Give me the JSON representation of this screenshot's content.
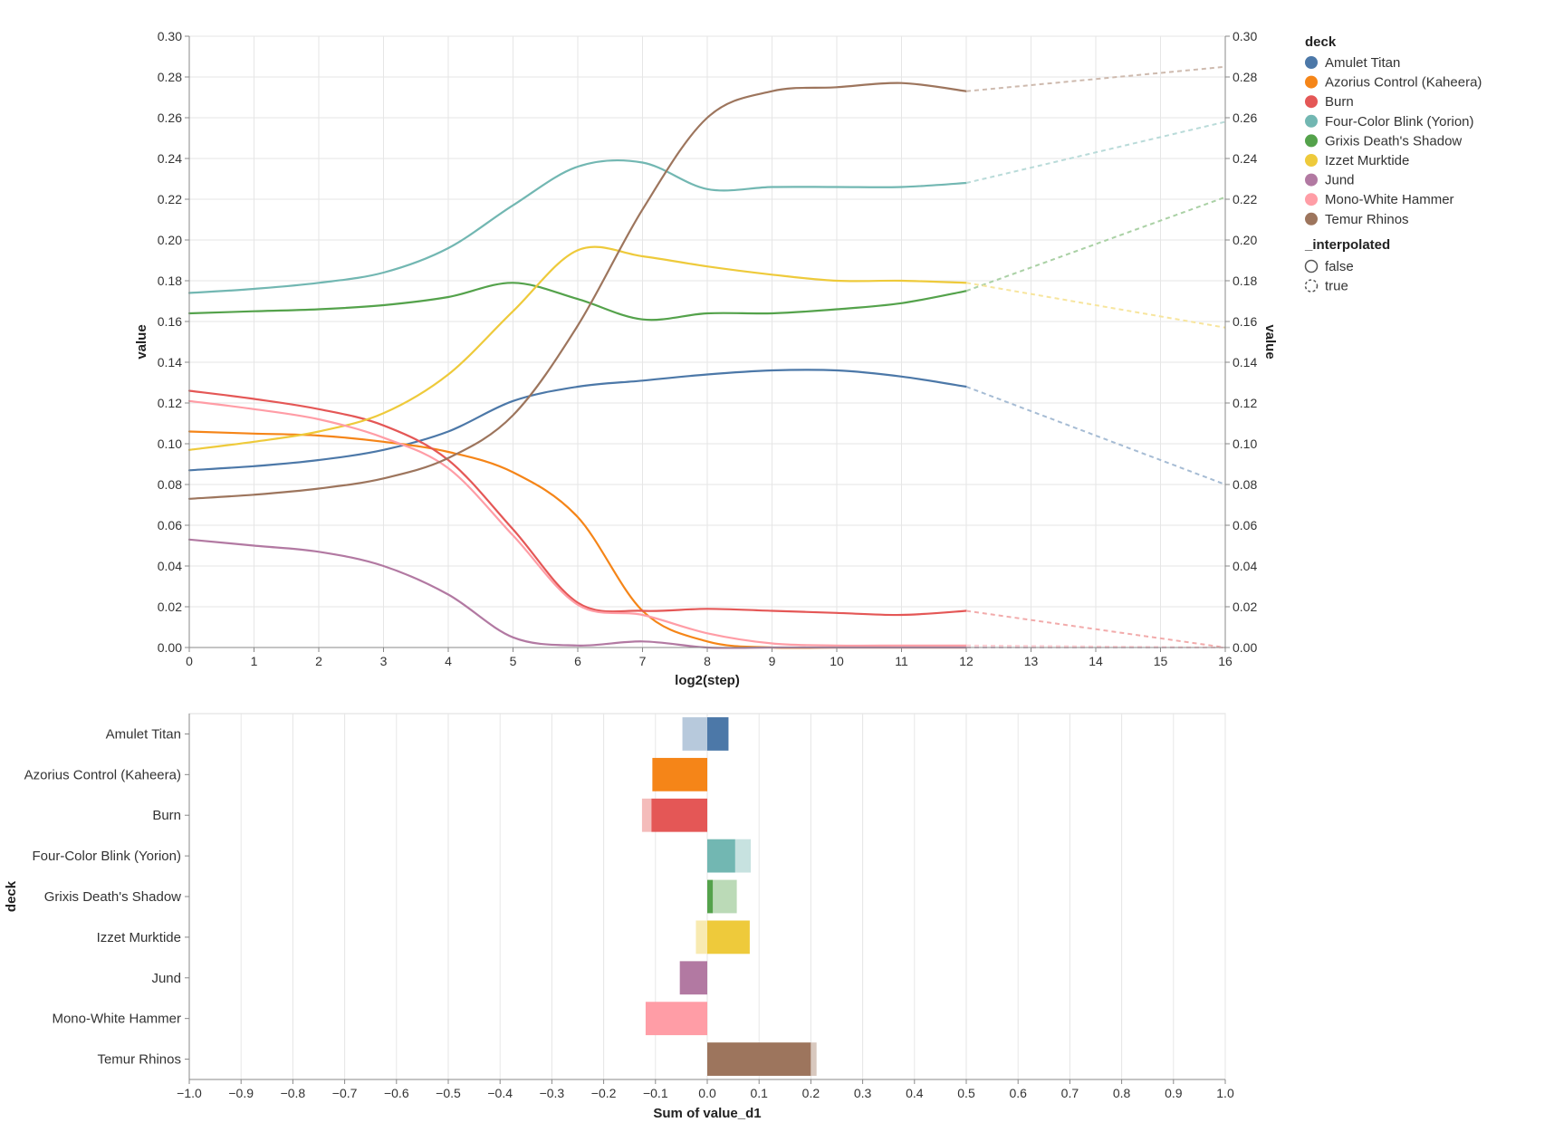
{
  "chart_data": [
    {
      "type": "line",
      "title": "",
      "xlabel": "log2(step)",
      "ylabel": "value",
      "ylabel_right": "value",
      "xlim": [
        0,
        16
      ],
      "ylim": [
        0,
        0.3
      ],
      "x_ticks": [
        0,
        1,
        2,
        3,
        4,
        5,
        6,
        7,
        8,
        9,
        10,
        11,
        12,
        13,
        14,
        15,
        16
      ],
      "y_ticks": [
        "0.00",
        "0.02",
        "0.04",
        "0.06",
        "0.08",
        "0.10",
        "0.12",
        "0.14",
        "0.16",
        "0.18",
        "0.20",
        "0.22",
        "0.24",
        "0.26",
        "0.28",
        "0.30"
      ],
      "grid": true,
      "series": [
        {
          "name": "Amulet Titan",
          "color": "#4c78a8",
          "x": [
            0,
            1,
            2,
            3,
            4,
            5,
            6,
            7,
            8,
            9,
            10,
            11,
            12
          ],
          "values": [
            0.087,
            0.089,
            0.092,
            0.097,
            0.106,
            0.121,
            0.128,
            0.131,
            0.134,
            0.136,
            0.136,
            0.133,
            0.128
          ],
          "projected": [
            0.08
          ]
        },
        {
          "name": "Azorius Control (Kaheera)",
          "color": "#f58518",
          "x": [
            0,
            1,
            2,
            3,
            4,
            5,
            6,
            7,
            8,
            9,
            10,
            11,
            12
          ],
          "values": [
            0.106,
            0.105,
            0.104,
            0.101,
            0.096,
            0.086,
            0.064,
            0.018,
            0.003,
            0.0,
            0.0,
            0.0,
            0.0
          ],
          "projected": [
            0.0
          ]
        },
        {
          "name": "Burn",
          "color": "#e45756",
          "x": [
            0,
            1,
            2,
            3,
            4,
            5,
            6,
            7,
            8,
            9,
            10,
            11,
            12
          ],
          "values": [
            0.126,
            0.122,
            0.117,
            0.109,
            0.092,
            0.058,
            0.022,
            0.018,
            0.019,
            0.018,
            0.017,
            0.016,
            0.018
          ],
          "projected": [
            0.0
          ]
        },
        {
          "name": "Four-Color Blink (Yorion)",
          "color": "#72b7b2",
          "x": [
            0,
            1,
            2,
            3,
            4,
            5,
            6,
            7,
            8,
            9,
            10,
            11,
            12
          ],
          "values": [
            0.174,
            0.176,
            0.179,
            0.184,
            0.196,
            0.217,
            0.236,
            0.238,
            0.225,
            0.226,
            0.226,
            0.226,
            0.228
          ],
          "projected": [
            0.258
          ]
        },
        {
          "name": "Grixis Death's Shadow",
          "color": "#54a24b",
          "x": [
            0,
            1,
            2,
            3,
            4,
            5,
            6,
            7,
            8,
            9,
            10,
            11,
            12
          ],
          "values": [
            0.164,
            0.165,
            0.166,
            0.168,
            0.172,
            0.179,
            0.171,
            0.161,
            0.164,
            0.164,
            0.166,
            0.169,
            0.175
          ],
          "projected": [
            0.221
          ]
        },
        {
          "name": "Izzet Murktide",
          "color": "#eeca3b",
          "x": [
            0,
            1,
            2,
            3,
            4,
            5,
            6,
            7,
            8,
            9,
            10,
            11,
            12
          ],
          "values": [
            0.097,
            0.101,
            0.106,
            0.115,
            0.134,
            0.165,
            0.195,
            0.192,
            0.187,
            0.183,
            0.18,
            0.18,
            0.179
          ],
          "projected": [
            0.157
          ]
        },
        {
          "name": "Jund",
          "color": "#b279a2",
          "x": [
            0,
            1,
            2,
            3,
            4,
            5,
            6,
            7,
            8,
            9,
            10,
            11,
            12
          ],
          "values": [
            0.053,
            0.05,
            0.047,
            0.04,
            0.026,
            0.005,
            0.001,
            0.003,
            0.0,
            0.0,
            0.0,
            0.0,
            0.0
          ],
          "projected": [
            0.0
          ]
        },
        {
          "name": "Mono-White Hammer",
          "color": "#ff9da6",
          "x": [
            0,
            1,
            2,
            3,
            4,
            5,
            6,
            7,
            8,
            9,
            10,
            11,
            12
          ],
          "values": [
            0.121,
            0.117,
            0.112,
            0.103,
            0.088,
            0.055,
            0.021,
            0.016,
            0.007,
            0.002,
            0.001,
            0.001,
            0.001
          ],
          "projected": [
            0.0
          ]
        },
        {
          "name": "Temur Rhinos",
          "color": "#9d755d",
          "x": [
            0,
            1,
            2,
            3,
            4,
            5,
            6,
            7,
            8,
            9,
            10,
            11,
            12
          ],
          "values": [
            0.073,
            0.075,
            0.078,
            0.083,
            0.093,
            0.114,
            0.158,
            0.215,
            0.26,
            0.273,
            0.275,
            0.277,
            0.273
          ],
          "projected": [
            0.285
          ]
        }
      ],
      "projection_x": [
        16
      ],
      "legend": {
        "title": "deck",
        "placement": "top-right",
        "interp_title": "_interpolated",
        "interp_items": [
          "false",
          "true"
        ]
      }
    },
    {
      "type": "bar",
      "orientation": "horizontal",
      "xlabel": "Sum of value_d1",
      "ylabel": "deck",
      "xlim": [
        -1.0,
        1.0
      ],
      "x_ticks": [
        "−1.0",
        "−0.9",
        "−0.8",
        "−0.7",
        "−0.6",
        "−0.5",
        "−0.4",
        "−0.3",
        "−0.2",
        "−0.1",
        "0.0",
        "0.1",
        "0.2",
        "0.3",
        "0.4",
        "0.5",
        "0.6",
        "0.7",
        "0.8",
        "0.9",
        "1.0"
      ],
      "categories": [
        "Amulet Titan",
        "Azorius Control (Kaheera)",
        "Burn",
        "Four-Color Blink (Yorion)",
        "Grixis Death's Shadow",
        "Izzet Murktide",
        "Jund",
        "Mono-White Hammer",
        "Temur Rhinos"
      ],
      "series": [
        {
          "name": "false",
          "values": [
            0.041,
            -0.106,
            -0.108,
            0.054,
            0.011,
            0.082,
            -0.053,
            -0.119,
            0.2
          ]
        },
        {
          "name": "true",
          "values": [
            -0.048,
            0.0,
            -0.018,
            0.03,
            0.046,
            -0.022,
            0.0,
            0.0,
            0.011
          ]
        }
      ]
    }
  ]
}
